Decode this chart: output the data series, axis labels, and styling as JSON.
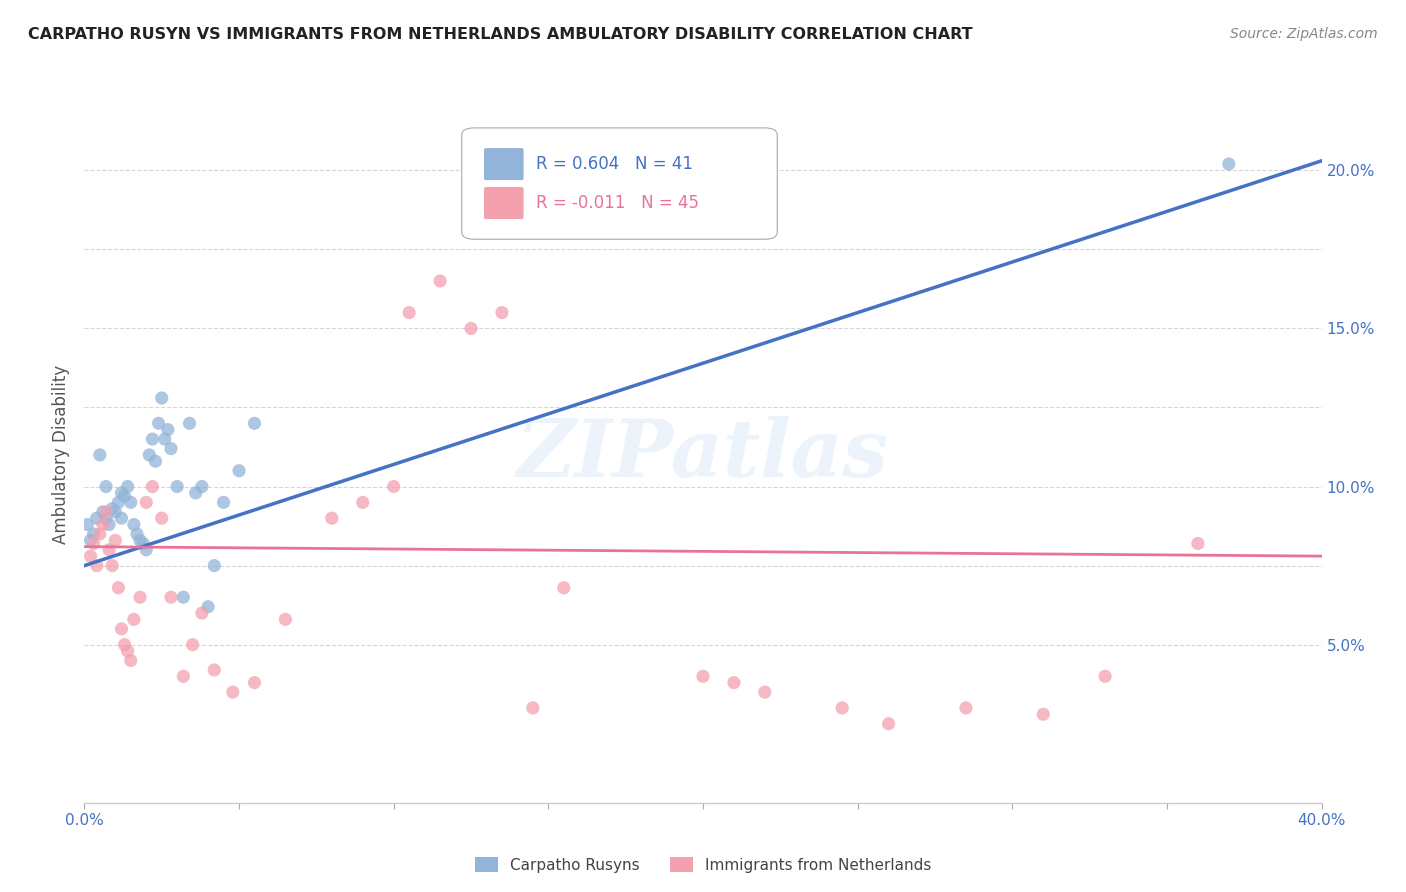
{
  "title": "CARPATHO RUSYN VS IMMIGRANTS FROM NETHERLANDS AMBULATORY DISABILITY CORRELATION CHART",
  "source": "Source: ZipAtlas.com",
  "ylabel": "Ambulatory Disability",
  "xlim": [
    0,
    0.4
  ],
  "ylim": [
    0.0,
    0.22
  ],
  "ytick_vals": [
    0.05,
    0.075,
    0.1,
    0.125,
    0.15,
    0.175,
    0.2
  ],
  "ytick_labels": [
    "5.0%",
    "",
    "10.0%",
    "",
    "15.0%",
    "",
    "20.0%"
  ],
  "xtick_vals": [
    0.0,
    0.05,
    0.1,
    0.15,
    0.2,
    0.25,
    0.3,
    0.35,
    0.4
  ],
  "xtick_labels": [
    "0.0%",
    "",
    "",
    "",
    "",
    "",
    "",
    "",
    "40.0%"
  ],
  "legend_text_1": "R = 0.604   N = 41",
  "legend_text_2": "R = -0.011   N = 45",
  "color_blue": "#92B4D8",
  "color_pink": "#F4A0AE",
  "color_line_blue": "#4472C4",
  "color_line_pink": "#E87399",
  "color_tick": "#4472C4",
  "watermark": "ZIPatlas",
  "blue_x": [
    0.001,
    0.002,
    0.003,
    0.004,
    0.005,
    0.006,
    0.007,
    0.007,
    0.008,
    0.009,
    0.01,
    0.011,
    0.012,
    0.012,
    0.013,
    0.014,
    0.015,
    0.016,
    0.017,
    0.018,
    0.019,
    0.02,
    0.021,
    0.022,
    0.023,
    0.024,
    0.025,
    0.026,
    0.027,
    0.028,
    0.03,
    0.032,
    0.034,
    0.036,
    0.038,
    0.04,
    0.042,
    0.045,
    0.05,
    0.055,
    0.37
  ],
  "blue_y": [
    0.088,
    0.083,
    0.085,
    0.09,
    0.11,
    0.092,
    0.09,
    0.1,
    0.088,
    0.093,
    0.092,
    0.095,
    0.098,
    0.09,
    0.097,
    0.1,
    0.095,
    0.088,
    0.085,
    0.083,
    0.082,
    0.08,
    0.11,
    0.115,
    0.108,
    0.12,
    0.128,
    0.115,
    0.118,
    0.112,
    0.1,
    0.065,
    0.12,
    0.098,
    0.1,
    0.062,
    0.075,
    0.095,
    0.105,
    0.12,
    0.202
  ],
  "pink_x": [
    0.002,
    0.003,
    0.004,
    0.005,
    0.006,
    0.007,
    0.008,
    0.009,
    0.01,
    0.011,
    0.012,
    0.013,
    0.014,
    0.015,
    0.016,
    0.018,
    0.02,
    0.022,
    0.025,
    0.028,
    0.032,
    0.035,
    0.038,
    0.042,
    0.048,
    0.055,
    0.065,
    0.08,
    0.09,
    0.1,
    0.105,
    0.115,
    0.125,
    0.135,
    0.145,
    0.155,
    0.2,
    0.21,
    0.22,
    0.245,
    0.26,
    0.285,
    0.31,
    0.33,
    0.36
  ],
  "pink_y": [
    0.078,
    0.082,
    0.075,
    0.085,
    0.088,
    0.092,
    0.08,
    0.075,
    0.083,
    0.068,
    0.055,
    0.05,
    0.048,
    0.045,
    0.058,
    0.065,
    0.095,
    0.1,
    0.09,
    0.065,
    0.04,
    0.05,
    0.06,
    0.042,
    0.035,
    0.038,
    0.058,
    0.09,
    0.095,
    0.1,
    0.155,
    0.165,
    0.15,
    0.155,
    0.03,
    0.068,
    0.04,
    0.038,
    0.035,
    0.03,
    0.025,
    0.03,
    0.028,
    0.04,
    0.082
  ],
  "blue_trend_x": [
    0.0,
    0.4
  ],
  "blue_trend_y": [
    0.075,
    0.203
  ],
  "pink_trend_x": [
    0.0,
    0.4
  ],
  "pink_trend_y": [
    0.081,
    0.078
  ],
  "grid_color": "#CCCCCC",
  "background_color": "#FFFFFF",
  "title_color": "#222222",
  "axis_label_color": "#555555",
  "source_color": "#888888",
  "legend_label1": "Carpatho Rusyns",
  "legend_label2": "Immigrants from Netherlands"
}
